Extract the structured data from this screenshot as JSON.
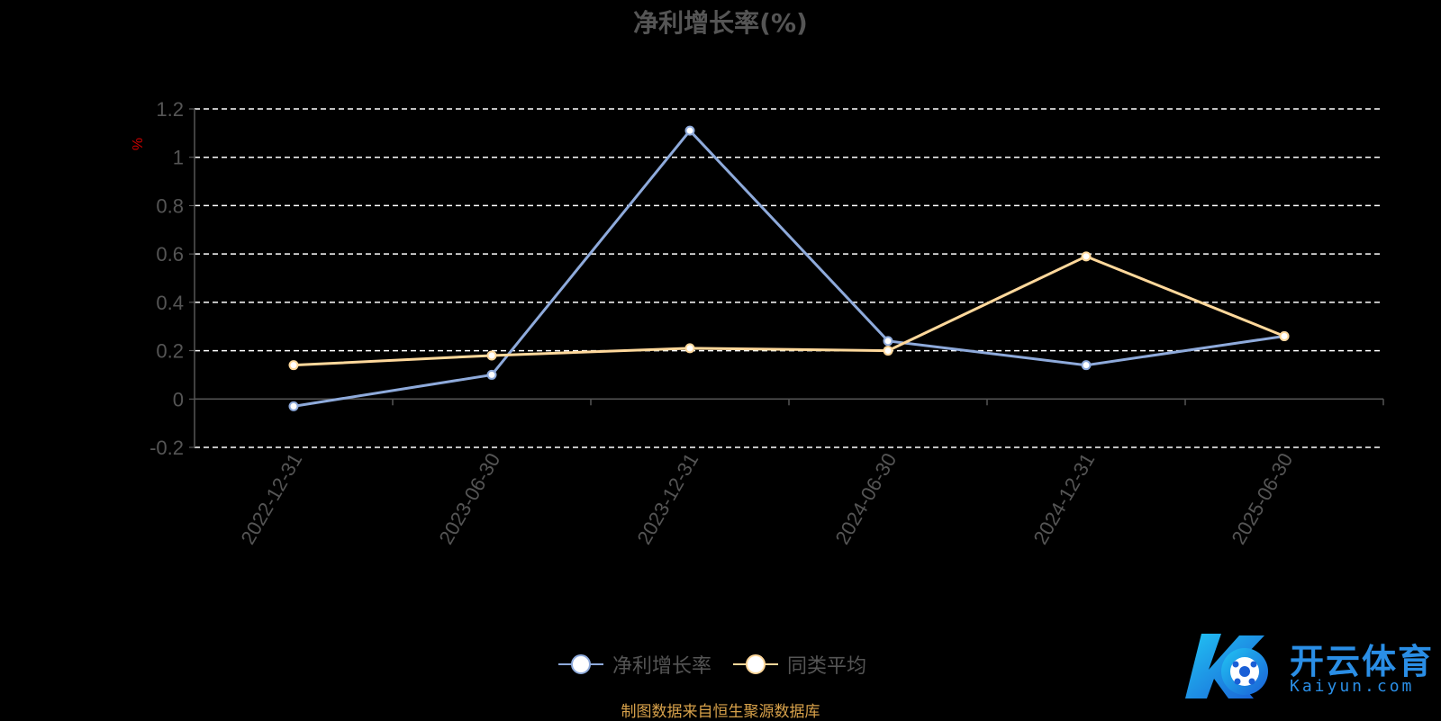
{
  "chart_data": {
    "type": "line",
    "title": "净利增长率(%)",
    "ylabel": "%",
    "xlabel": "",
    "categories": [
      "2022-12-31",
      "2023-06-30",
      "2023-12-31",
      "2024-06-30",
      "2024-12-31",
      "2025-06-30"
    ],
    "series": [
      {
        "name": "净利增长率",
        "values": [
          -0.03,
          0.1,
          1.11,
          0.24,
          0.14,
          0.26
        ],
        "color": "#8eaadb"
      },
      {
        "name": "同类平均",
        "values": [
          0.14,
          0.18,
          0.21,
          0.2,
          0.59,
          0.26
        ],
        "color": "#ffd89b"
      }
    ],
    "ylim": [
      -0.2,
      1.2
    ],
    "yticks": [
      "-0.2",
      "0",
      "0.2",
      "0.4",
      "0.6",
      "0.8",
      "1",
      "1.2"
    ],
    "grid": true,
    "legend_position": "bottom-center"
  },
  "footer": {
    "source": "制图数据来自恒生聚源数据库"
  },
  "watermark": {
    "brand_cn": "开云体育",
    "brand_en": "Kaiyun.com"
  },
  "colors": {
    "background": "#000000",
    "title": "#555555",
    "grid": "#ffffff",
    "source": "#d7a14a",
    "ylabel": "#cc0000",
    "brand": "#2a8ee6"
  }
}
